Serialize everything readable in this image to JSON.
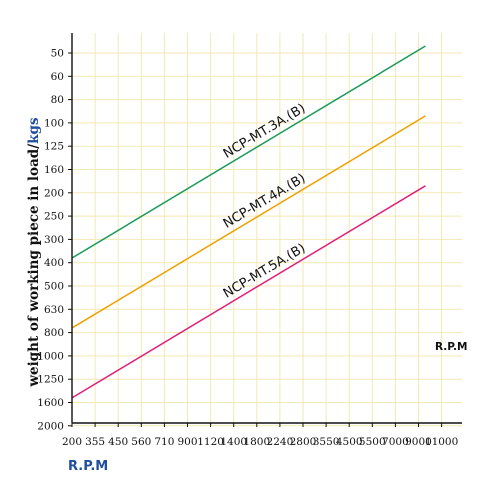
{
  "chart_data": {
    "type": "line",
    "title": "",
    "ylabel_main": "weight of working piece in load/",
    "ylabel_unit": "kgs",
    "xlabel_bottom": "R.P.M",
    "xlabel_corner": "R.P.M",
    "x_ticks": [
      "200",
      "355",
      "450",
      "560",
      "710",
      "900",
      "1120",
      "1400",
      "1800",
      "2240",
      "2800",
      "3550",
      "4500",
      "5500",
      "7000",
      "9000",
      "11000"
    ],
    "y_ticks": [
      "50",
      "60",
      "80",
      "100",
      "125",
      "160",
      "200",
      "250",
      "300",
      "400",
      "500",
      "630",
      "800",
      "1000",
      "1250",
      "1600",
      "2000"
    ],
    "grid": true,
    "series": [
      {
        "name": "NCP-MT.3A.(B)",
        "color": "#1a9a5a",
        "x_index": [
          0,
          15.3
        ],
        "y_index": [
          8.8,
          -0.3
        ]
      },
      {
        "name": "NCP-MT.4A.(B)",
        "color": "#f0a000",
        "x_index": [
          0,
          15.3
        ],
        "y_index": [
          11.8,
          2.7
        ]
      },
      {
        "name": "NCP-MT.5A.(B)",
        "color": "#e0207a",
        "x_index": [
          0,
          15.3
        ],
        "y_index": [
          14.8,
          5.7
        ]
      }
    ]
  },
  "colors": {
    "grid": "#f3e9b3",
    "axis": "#111111",
    "ylabel_unit": "#1f4e9c",
    "xfoot": "#1f4e9c"
  }
}
